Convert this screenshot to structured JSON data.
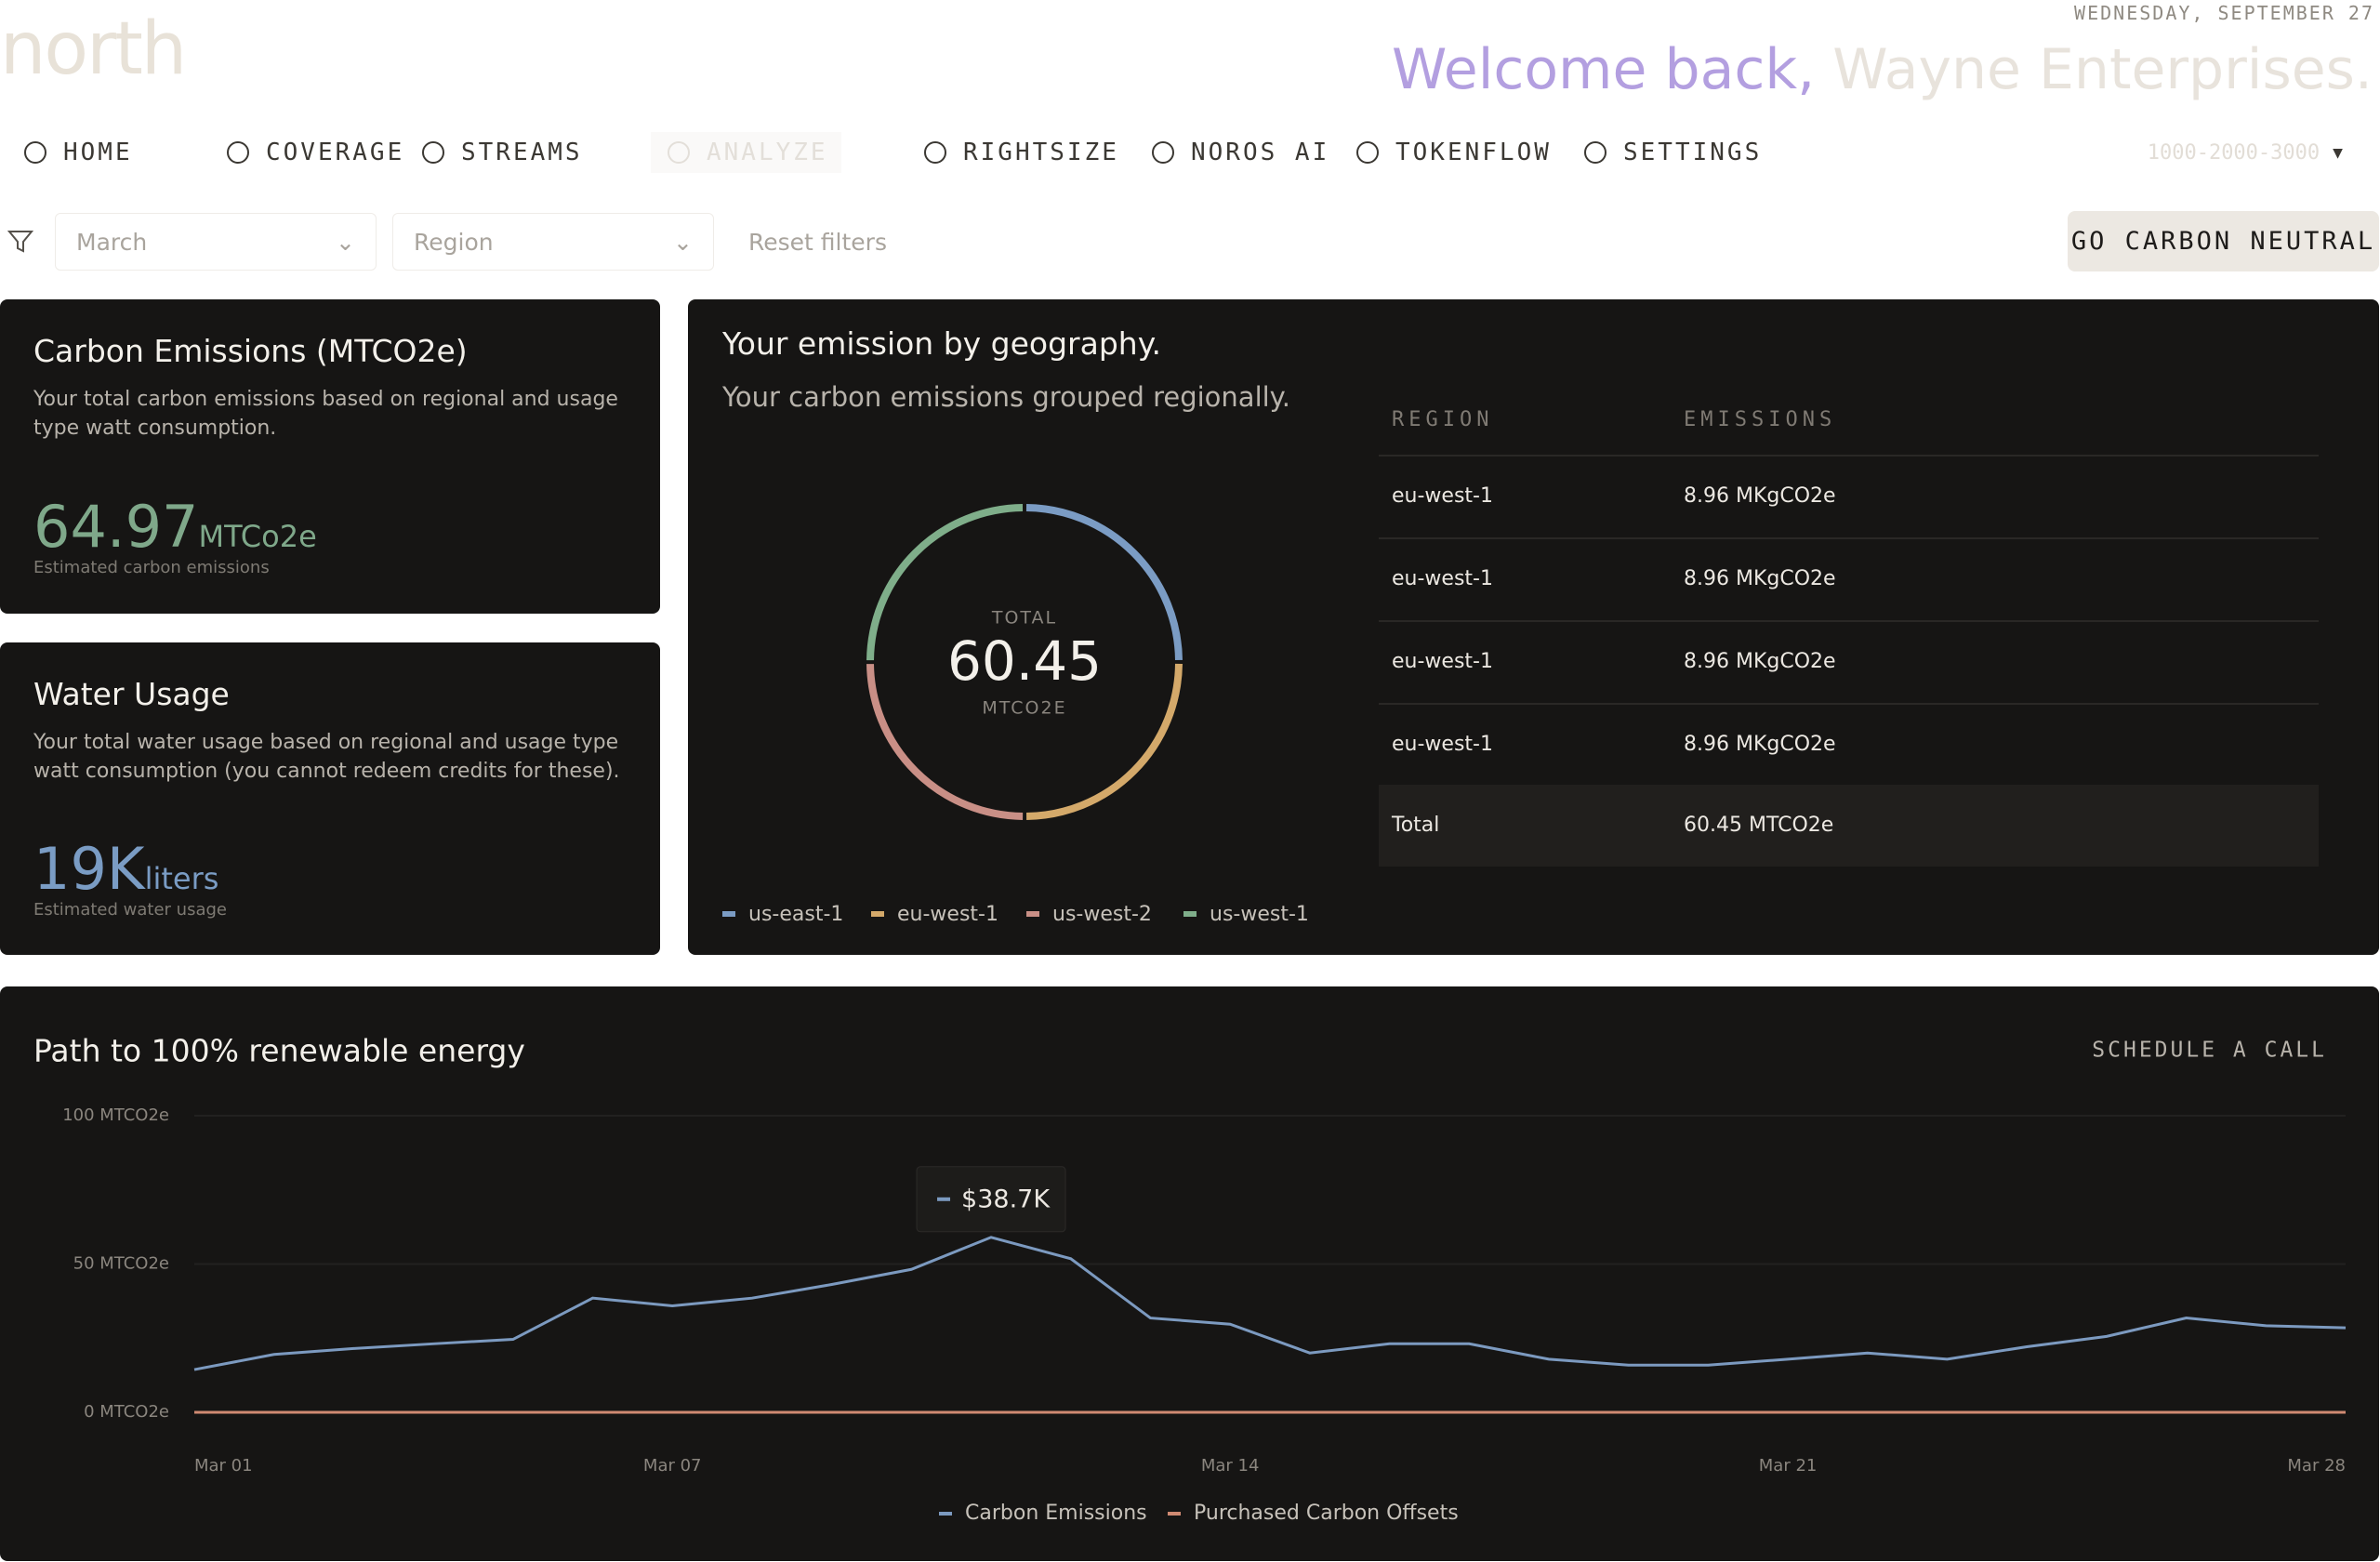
{
  "header": {
    "logo": "north",
    "date": "WEDNESDAY, SEPTEMBER 27",
    "welcome": "Welcome back,",
    "company": "Wayne Enterprises.",
    "account": "1000-2000-3000"
  },
  "nav": [
    "HOME",
    "COVERAGE",
    "STREAMS",
    "ANALYZE",
    "RIGHTSIZE",
    "NOROS AI",
    "TOKENFLOW",
    "SETTINGS"
  ],
  "filters": {
    "month": "March",
    "region": "Region",
    "reset": "Reset filters",
    "cta": "GO CARBON NEUTRAL"
  },
  "carbon_card": {
    "title": "Carbon Emissions (MTCO2e)",
    "description": "Your total carbon emissions based on regional and usage type watt consumption.",
    "value": "64.97",
    "unit": "MTCo2e",
    "caption": "Estimated carbon emissions"
  },
  "water_card": {
    "title": "Water Usage",
    "description": "Your total water usage based on regional and usage type watt consumption (you cannot redeem credits for these).",
    "value": "19K",
    "unit": "liters",
    "caption": "Estimated water usage"
  },
  "geography": {
    "title": "Your emission by geography.",
    "subtitle": "Your carbon emissions grouped regionally.",
    "donut": {
      "type": "pie",
      "center_label": "TOTAL",
      "total": "60.45",
      "unit": "MTCO2E",
      "categories": [
        "us-east-1",
        "eu-west-1",
        "us-west-2",
        "us-west-1"
      ],
      "colors": [
        "#7b9cc4",
        "#d4a96a",
        "#c98f86",
        "#7fae8a"
      ],
      "values": [
        15.11,
        15.11,
        15.11,
        15.12
      ]
    },
    "table": {
      "headers": [
        "REGION",
        "EMISSIONS"
      ],
      "rows": [
        [
          "eu-west-1",
          "8.96 MKgCO2e"
        ],
        [
          "eu-west-1",
          "8.96 MKgCO2e"
        ],
        [
          "eu-west-1",
          "8.96 MKgCO2e"
        ],
        [
          "eu-west-1",
          "8.96 MKgCO2e"
        ]
      ],
      "total": [
        "Total",
        "60.45 MTCO2e"
      ]
    }
  },
  "chart_data": {
    "type": "line",
    "title": "Path to 100% renewable energy",
    "action": "SCHEDULE A CALL",
    "x": [
      1,
      2,
      3,
      4,
      5,
      6,
      7,
      8,
      9,
      10,
      11,
      12,
      13,
      14,
      15,
      16,
      17,
      18,
      19,
      20,
      21,
      22,
      23,
      24,
      25,
      26,
      27,
      28
    ],
    "xlim": [
      1,
      28
    ],
    "xticks": [
      {
        "value": 1,
        "label": "Mar 01"
      },
      {
        "value": 7,
        "label": "Mar 07"
      },
      {
        "value": 14,
        "label": "Mar 14"
      },
      {
        "value": 21,
        "label": "Mar 21"
      },
      {
        "value": 28,
        "label": "Mar 28"
      }
    ],
    "ylim": [
      0,
      100
    ],
    "yticks": [
      {
        "value": 0,
        "label": "0 MTCO2e"
      },
      {
        "value": 50,
        "label": "50 MTCO2e"
      },
      {
        "value": 100,
        "label": "100 MTCO2e"
      }
    ],
    "series": [
      {
        "name": "Carbon Emissions",
        "color": "#7c9ac0",
        "values": [
          14.4,
          19.5,
          21.5,
          23.1,
          24.6,
          38.5,
          35.9,
          38.5,
          43.1,
          48.2,
          59.0,
          51.8,
          31.8,
          29.7,
          20.0,
          23.1,
          23.1,
          17.9,
          15.9,
          15.9,
          17.9,
          20.0,
          17.9,
          22.1,
          25.6,
          31.8,
          29.2,
          28.5
        ]
      },
      {
        "name": "Purchased Carbon Offsets",
        "color": "#d08a72",
        "values": [
          0,
          0,
          0,
          0,
          0,
          0,
          0,
          0,
          0,
          0,
          0,
          0,
          0,
          0,
          0,
          0,
          0,
          0,
          0,
          0,
          0,
          0,
          0,
          0,
          0,
          0,
          0,
          0
        ]
      }
    ],
    "annotation": "$38.7K",
    "grid": true
  }
}
